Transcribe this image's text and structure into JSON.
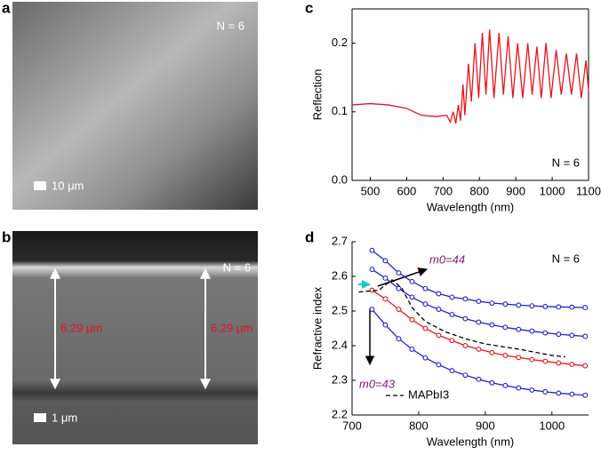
{
  "panel_labels": [
    "a",
    "b",
    "c",
    "d"
  ],
  "images": [
    {
      "annotation": "N = 6",
      "scale_bar": "10 μm"
    },
    {
      "annotation": "N = 6",
      "scale_bar": "1 μm",
      "thickness_labels": [
        "6.29 μm",
        "6.29 μm"
      ]
    }
  ],
  "chart_data": [
    {
      "type": "line",
      "x_label": "Wavelength (nm)",
      "y_label": "Reflection",
      "annotations": [
        "N = 6"
      ],
      "xlim": [
        450,
        1100
      ],
      "xticks": [
        500,
        600,
        700,
        800,
        900,
        1000,
        1100
      ],
      "ylim": [
        0,
        0.25
      ],
      "yticks": [
        {
          "value": 0,
          "label": "0.0"
        },
        0.1,
        0.2
      ],
      "box": true,
      "series": [
        {
          "color": "#e8141c",
          "marker": false,
          "dash": false,
          "x": [
            450,
            500,
            550,
            600,
            640,
            680,
            710,
            720,
            728,
            735,
            742,
            748,
            755,
            760,
            770,
            778,
            788,
            798,
            808,
            818,
            828,
            840,
            854,
            866,
            879,
            892,
            905,
            919,
            933,
            945,
            958,
            970,
            983,
            997,
            1011,
            1025,
            1039,
            1053,
            1067,
            1080,
            1093,
            1100
          ],
          "values": [
            0.11,
            0.112,
            0.11,
            0.105,
            0.095,
            0.093,
            0.095,
            0.085,
            0.1,
            0.083,
            0.11,
            0.087,
            0.14,
            0.095,
            0.17,
            0.115,
            0.2,
            0.12,
            0.215,
            0.125,
            0.22,
            0.12,
            0.215,
            0.125,
            0.21,
            0.12,
            0.2,
            0.12,
            0.2,
            0.125,
            0.195,
            0.12,
            0.2,
            0.12,
            0.19,
            0.125,
            0.185,
            0.125,
            0.185,
            0.12,
            0.175,
            0.13
          ]
        }
      ]
    },
    {
      "type": "line",
      "x_label": "Wavelength (nm)",
      "y_label": "Refractive index",
      "annotations": [
        "N = 6",
        "m0=44",
        "m0=43"
      ],
      "xlim": [
        700,
        1055
      ],
      "xticks": [
        700,
        800,
        900,
        1000
      ],
      "ylim": [
        2.2,
        2.7
      ],
      "yticks": [
        2.2,
        2.3,
        2.4,
        2.5,
        2.6,
        2.7
      ],
      "box": false,
      "legend": "bottom-right",
      "series": [
        {
          "color": "#1f1fd6",
          "marker": true,
          "dash": false,
          "x": [
            730,
            750,
            770,
            790,
            810,
            830,
            850,
            870,
            890,
            910,
            930,
            950,
            970,
            990,
            1010,
            1030,
            1050
          ],
          "values": [
            2.675,
            2.645,
            2.61,
            2.585,
            2.565,
            2.55,
            2.54,
            2.535,
            2.528,
            2.523,
            2.52,
            2.517,
            2.515,
            2.513,
            2.512,
            2.511,
            2.51
          ]
        },
        {
          "color": "#1f1fd6",
          "marker": true,
          "dash": false,
          "x": [
            730,
            750,
            770,
            790,
            810,
            830,
            850,
            870,
            890,
            910,
            930,
            950,
            970,
            990,
            1010,
            1030,
            1050
          ],
          "values": [
            2.62,
            2.595,
            2.565,
            2.54,
            2.52,
            2.505,
            2.49,
            2.478,
            2.468,
            2.46,
            2.453,
            2.447,
            2.442,
            2.437,
            2.433,
            2.43,
            2.427
          ]
        },
        {
          "color": "#e8141c",
          "marker": true,
          "dash": false,
          "x": [
            730,
            750,
            770,
            790,
            810,
            830,
            850,
            870,
            890,
            910,
            930,
            950,
            970,
            990,
            1010,
            1030,
            1050
          ],
          "values": [
            2.56,
            2.535,
            2.505,
            2.475,
            2.45,
            2.43,
            2.415,
            2.4,
            2.39,
            2.38,
            2.372,
            2.366,
            2.36,
            2.355,
            2.35,
            2.346,
            2.342
          ]
        },
        {
          "color": "#1f1fd6",
          "marker": true,
          "dash": false,
          "x": [
            730,
            750,
            770,
            790,
            810,
            830,
            850,
            870,
            890,
            910,
            930,
            950,
            970,
            990,
            1010,
            1030,
            1050
          ],
          "values": [
            2.505,
            2.46,
            2.42,
            2.39,
            2.365,
            2.345,
            2.328,
            2.315,
            2.303,
            2.293,
            2.285,
            2.278,
            2.272,
            2.267,
            2.263,
            2.26,
            2.257
          ]
        },
        {
          "name": "MAPbI3",
          "color": "#000000",
          "marker": false,
          "dash": true,
          "x": [
            710,
            740,
            760,
            775,
            790,
            810,
            840,
            870,
            900,
            950,
            1000,
            1020
          ],
          "values": [
            2.555,
            2.56,
            2.59,
            2.565,
            2.51,
            2.47,
            2.44,
            2.42,
            2.405,
            2.39,
            2.372,
            2.368
          ]
        }
      ]
    }
  ]
}
